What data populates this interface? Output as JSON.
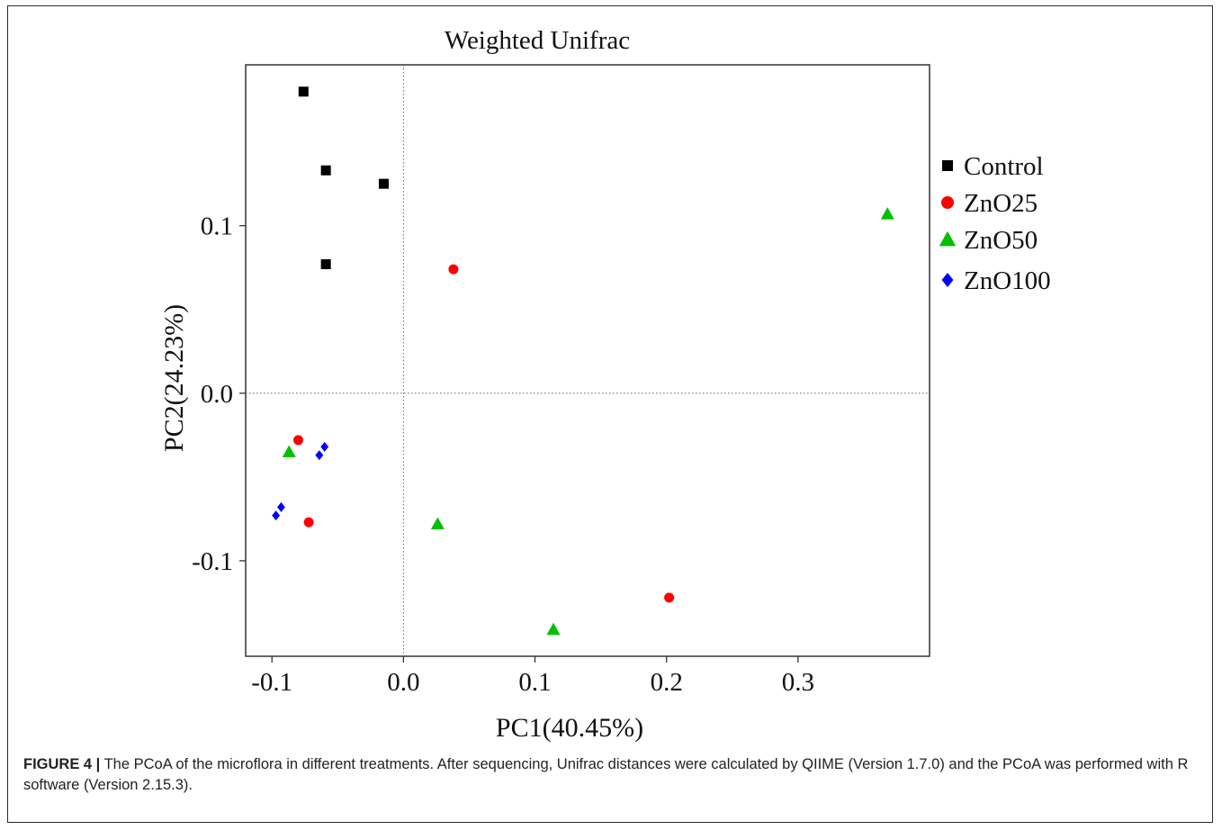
{
  "figure": {
    "caption_label": "FIGURE 4 |",
    "caption_text": " The PCoA of the microflora in different treatments. After sequencing, Unifrac distances were calculated by QIIME (Version 1.7.0) and the PCoA was performed with R software (Version 2.15.3)."
  },
  "chart_data": {
    "type": "scatter",
    "title": "Weighted Unifrac",
    "xlabel": "PC1(40.45%)",
    "ylabel": "PC2(24.23%)",
    "xlim": [
      -0.12,
      0.4
    ],
    "ylim": [
      -0.157,
      0.196
    ],
    "x_ticks": [
      -0.1,
      0.0,
      0.1,
      0.2,
      0.3
    ],
    "x_tick_labels": [
      "-0.1",
      "0.0",
      "0.1",
      "0.2",
      "0.3"
    ],
    "y_ticks": [
      -0.1,
      0.0,
      0.1
    ],
    "y_tick_labels": [
      "-0.1",
      "0.0",
      "0.1"
    ],
    "reference_lines": {
      "x": 0.0,
      "y": 0.0,
      "style": "dotted"
    },
    "grid": false,
    "legend_position": "right",
    "series": [
      {
        "name": "Control",
        "marker": "square",
        "color": "#000000",
        "points": [
          [
            -0.076,
            0.18
          ],
          [
            -0.059,
            0.133
          ],
          [
            -0.015,
            0.125
          ],
          [
            -0.059,
            0.077
          ]
        ]
      },
      {
        "name": "ZnO25",
        "marker": "circle",
        "color": "#ff0000",
        "points": [
          [
            0.038,
            0.074
          ],
          [
            -0.08,
            -0.028
          ],
          [
            -0.072,
            -0.077
          ],
          [
            0.202,
            -0.122
          ]
        ]
      },
      {
        "name": "ZnO50",
        "marker": "triangle",
        "color": "#00c000",
        "points": [
          [
            0.368,
            0.107
          ],
          [
            -0.087,
            -0.035
          ],
          [
            0.026,
            -0.078
          ],
          [
            0.114,
            -0.141
          ]
        ]
      },
      {
        "name": "ZnO100",
        "marker": "diamond",
        "color": "#0000ff",
        "points": [
          [
            -0.064,
            -0.037
          ],
          [
            -0.06,
            -0.032
          ],
          [
            -0.097,
            -0.073
          ],
          [
            -0.093,
            -0.068
          ]
        ]
      }
    ]
  }
}
